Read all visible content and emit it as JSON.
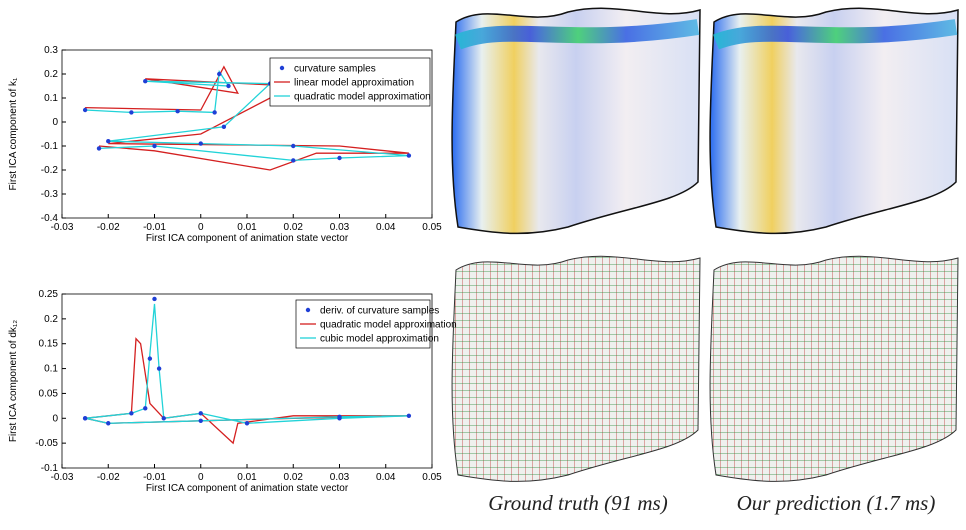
{
  "chart_data": [
    {
      "type": "line",
      "x_label": "First ICA component of animation state vector",
      "y_label": "First ICA component of k₁",
      "xlim": [
        -0.03,
        0.05
      ],
      "xticks": [
        -0.03,
        -0.02,
        -0.01,
        0,
        0.01,
        0.02,
        0.03,
        0.04,
        0.05
      ],
      "ylim": [
        -0.4,
        0.3
      ],
      "yticks": [
        -0.4,
        -0.3,
        -0.2,
        -0.1,
        0,
        0.1,
        0.2,
        0.3
      ],
      "series": [
        {
          "name": "curvature samples",
          "color": "#1f3fd6",
          "mode": "markers",
          "x": [
            -0.025,
            -0.015,
            -0.005,
            0.003,
            0.004,
            0.006,
            -0.012,
            0.015,
            0.005,
            -0.02,
            0.0,
            0.02,
            0.045,
            0.03,
            0.02,
            -0.01,
            -0.022
          ],
          "values": [
            0.05,
            0.04,
            0.045,
            0.04,
            0.2,
            0.15,
            0.17,
            0.16,
            -0.02,
            -0.08,
            -0.09,
            -0.1,
            -0.14,
            -0.15,
            -0.16,
            -0.1,
            -0.11
          ]
        },
        {
          "name": "linear model approximation",
          "color": "#d42020",
          "mode": "line",
          "x": [
            -0.025,
            0.0,
            0.005,
            0.008,
            -0.012,
            0.02,
            0.0,
            -0.02,
            0.03,
            0.045,
            0.025,
            0.015,
            -0.01,
            -0.022
          ],
          "values": [
            0.06,
            0.05,
            0.23,
            0.12,
            0.18,
            0.15,
            -0.05,
            -0.09,
            -0.1,
            -0.13,
            -0.13,
            -0.2,
            -0.12,
            -0.1
          ]
        },
        {
          "name": "quadratic model approximation",
          "color": "#22d3d8",
          "mode": "line",
          "x": [
            -0.025,
            -0.015,
            -0.005,
            0.003,
            0.004,
            0.006,
            -0.012,
            0.015,
            0.005,
            -0.02,
            0.0,
            0.02,
            0.045,
            0.03,
            0.02,
            -0.01,
            -0.022
          ],
          "values": [
            0.05,
            0.04,
            0.045,
            0.04,
            0.21,
            0.15,
            0.17,
            0.16,
            -0.02,
            -0.08,
            -0.09,
            -0.1,
            -0.14,
            -0.15,
            -0.16,
            -0.1,
            -0.11
          ]
        }
      ]
    },
    {
      "type": "line",
      "x_label": "First ICA component of animation state vector",
      "y_label": "First ICA component of dk₁₂",
      "xlim": [
        -0.03,
        0.05
      ],
      "xticks": [
        -0.03,
        -0.02,
        -0.01,
        0,
        0.01,
        0.02,
        0.03,
        0.04,
        0.05
      ],
      "ylim": [
        -0.1,
        0.25
      ],
      "yticks": [
        -0.1,
        -0.05,
        0,
        0.05,
        0.1,
        0.15,
        0.2,
        0.25
      ],
      "series": [
        {
          "name": "deriv. of curvature samples",
          "color": "#1f3fd6",
          "mode": "markers",
          "x": [
            -0.025,
            -0.015,
            -0.012,
            -0.011,
            -0.01,
            -0.009,
            -0.008,
            0.0,
            0.01,
            0.03,
            0.045,
            0.03,
            0.0,
            -0.02,
            -0.025
          ],
          "values": [
            0.0,
            0.01,
            0.02,
            0.12,
            0.24,
            0.1,
            0.0,
            0.01,
            -0.01,
            0.0,
            0.005,
            0.003,
            -0.005,
            -0.01,
            0.0
          ]
        },
        {
          "name": "quadratic model approximation",
          "color": "#d42020",
          "mode": "line",
          "x": [
            -0.025,
            -0.015,
            -0.014,
            -0.013,
            -0.011,
            -0.008,
            0.0,
            0.007,
            0.008,
            0.02,
            0.045,
            0.02,
            0.0,
            -0.02,
            -0.025
          ],
          "values": [
            0.0,
            0.01,
            0.16,
            0.15,
            0.03,
            0.0,
            0.01,
            -0.05,
            -0.01,
            0.005,
            0.005,
            0.0,
            -0.005,
            -0.01,
            0.0
          ]
        },
        {
          "name": "cubic model approximation",
          "color": "#22d3d8",
          "mode": "line",
          "x": [
            -0.025,
            -0.015,
            -0.012,
            -0.011,
            -0.01,
            -0.009,
            -0.008,
            0.0,
            0.01,
            0.03,
            0.045,
            0.03,
            0.0,
            -0.02,
            -0.025
          ],
          "values": [
            0.0,
            0.01,
            0.02,
            0.13,
            0.23,
            0.1,
            0.0,
            0.01,
            -0.01,
            0.0,
            0.005,
            0.003,
            -0.005,
            -0.01,
            0.0
          ]
        }
      ]
    }
  ],
  "captions": [
    "Ground truth (91 ms)",
    "Our prediction (1.7 ms)"
  ]
}
